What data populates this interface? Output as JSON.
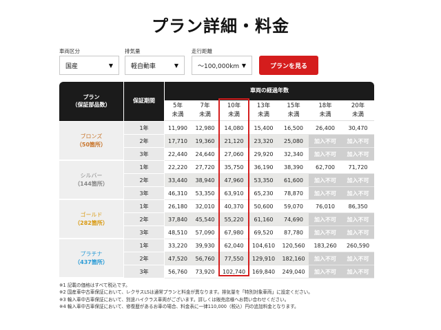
{
  "page_title": "プラン詳細・料金",
  "filters": {
    "vehicle_type": {
      "label": "車両区分",
      "value": "国産"
    },
    "displacement": {
      "label": "排気量",
      "value": "軽自動車"
    },
    "mileage": {
      "label": "走行距離",
      "value": "〜100,000km"
    },
    "submit_label": "プランを見る"
  },
  "table": {
    "header_plan": [
      "プラン",
      "（保証部品数）"
    ],
    "header_period": "保証期間",
    "header_years_group": "車両の経過年数",
    "year_columns": [
      [
        "5年",
        "未満"
      ],
      [
        "7年",
        "未満"
      ],
      [
        "10年",
        "未満"
      ],
      [
        "13年",
        "未満"
      ],
      [
        "15年",
        "未満"
      ],
      [
        "18年",
        "未満"
      ],
      [
        "20年",
        "未満"
      ]
    ],
    "highlight_column_index": 2,
    "plans": [
      {
        "name": "ブロンズ",
        "count": "（50箇所）",
        "color": "#c8742a",
        "rows": [
          {
            "period": "1年",
            "values": [
              "11,990",
              "12,980",
              "14,080",
              "15,400",
              "16,500",
              "26,400",
              "30,470"
            ]
          },
          {
            "period": "2年",
            "values": [
              "17,710",
              "19,360",
              "21,120",
              "23,320",
              "25,080",
              "加入不可",
              "加入不可"
            ]
          },
          {
            "period": "3年",
            "values": [
              "22,440",
              "24,640",
              "27,060",
              "29,920",
              "32,340",
              "加入不可",
              "加入不可"
            ]
          }
        ]
      },
      {
        "name": "シルバー",
        "count": "（144箇所）",
        "color": "#888888",
        "rows": [
          {
            "period": "1年",
            "values": [
              "22,220",
              "27,720",
              "35,750",
              "36,190",
              "38,390",
              "62,700",
              "71,720"
            ]
          },
          {
            "period": "2年",
            "values": [
              "33,440",
              "38,940",
              "47,960",
              "53,350",
              "61,600",
              "加入不可",
              "加入不可"
            ]
          },
          {
            "period": "3年",
            "values": [
              "46,310",
              "53,350",
              "63,910",
              "65,230",
              "78,870",
              "加入不可",
              "加入不可"
            ]
          }
        ]
      },
      {
        "name": "ゴールド",
        "count": "（282箇所）",
        "color": "#d99a12",
        "rows": [
          {
            "period": "1年",
            "values": [
              "26,180",
              "32,010",
              "40,370",
              "50,600",
              "59,070",
              "76,010",
              "86,350"
            ]
          },
          {
            "period": "2年",
            "values": [
              "37,840",
              "45,540",
              "55,220",
              "61,160",
              "74,690",
              "加入不可",
              "加入不可"
            ]
          },
          {
            "period": "3年",
            "values": [
              "48,510",
              "57,090",
              "67,980",
              "69,520",
              "87,780",
              "加入不可",
              "加入不可"
            ]
          }
        ]
      },
      {
        "name": "プラチナ",
        "count": "（437箇所）",
        "color": "#2a9bd6",
        "rows": [
          {
            "period": "1年",
            "values": [
              "33,220",
              "39,930",
              "62,040",
              "104,610",
              "120,560",
              "183,260",
              "260,590"
            ]
          },
          {
            "period": "2年",
            "values": [
              "47,520",
              "56,760",
              "77,550",
              "129,910",
              "182,160",
              "加入不可",
              "加入不可"
            ]
          },
          {
            "period": "3年",
            "values": [
              "56,760",
              "73,920",
              "102,740",
              "169,840",
              "249,040",
              "加入不可",
              "加入不可"
            ]
          }
        ]
      }
    ]
  },
  "notes": [
    "※1 記載の価格はすべて税込です。",
    "※2 国産車中古車保証において、レクサスLSは通常プランと料金が異なります。排気量を「特別対象車両」に設定ください。",
    "※3 輸入車中古車保証において、別途ハイクラス車両がございます。詳しくは販売店様へお問い合わせください。",
    "※4 輸入車中古車保証において、修復歴があるお車の場合、料金表に一律110,000（税込）円の追加料金となります。"
  ]
}
